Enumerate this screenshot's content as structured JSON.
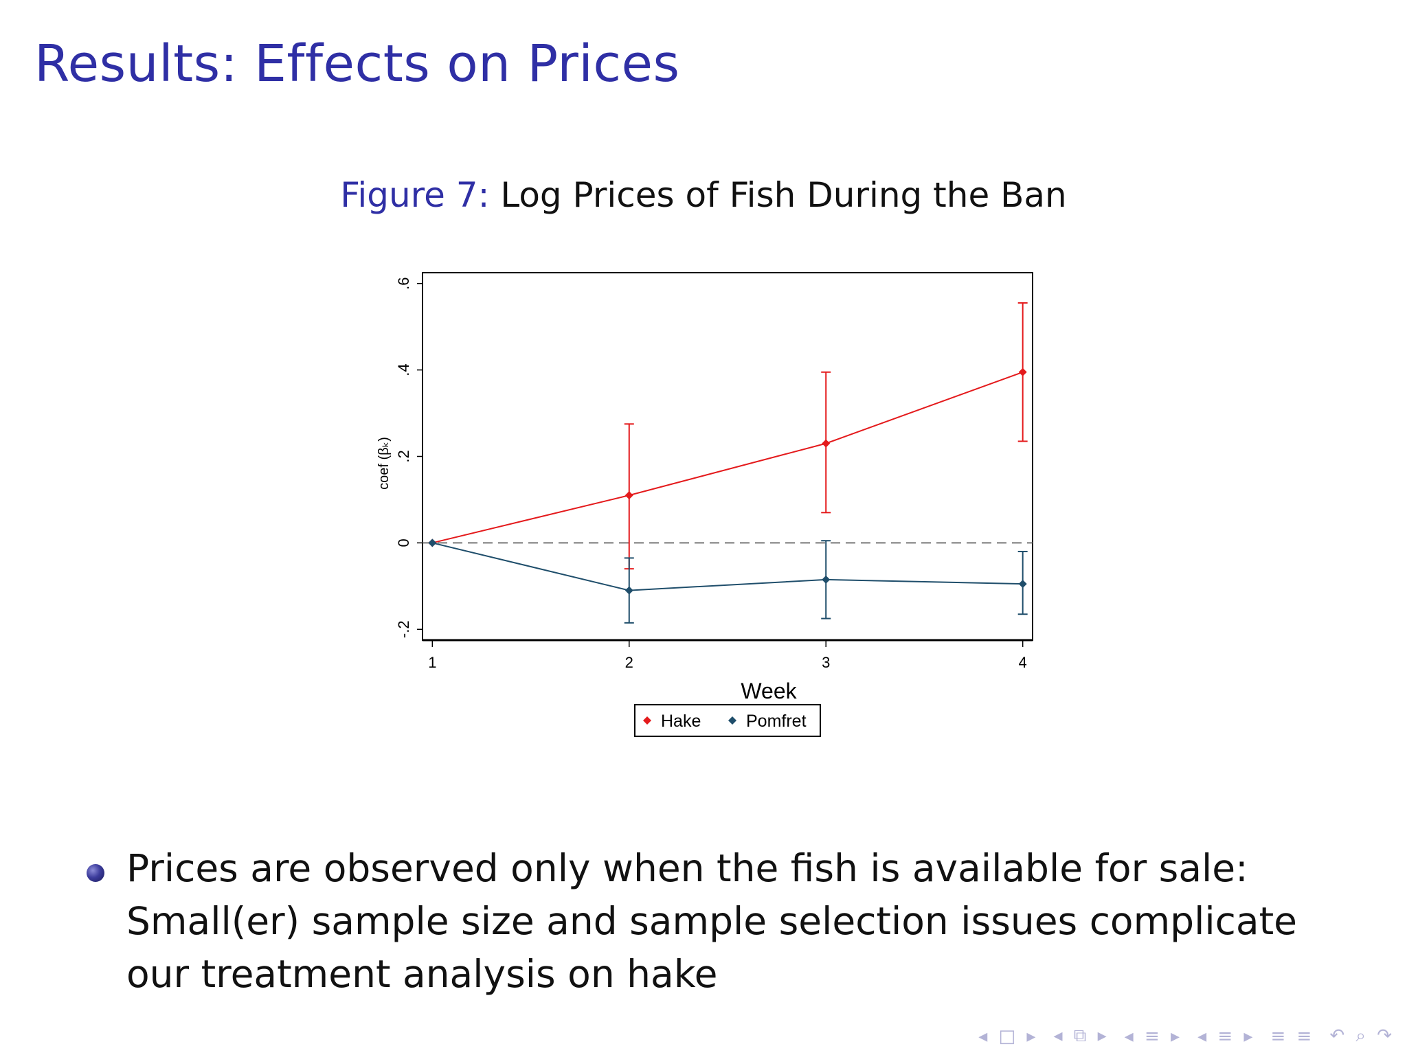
{
  "slide": {
    "title": "Results: Effects on Prices",
    "caption_label": "Figure 7:",
    "caption_text": "Log Prices of Fish During the Ban",
    "bullet_text": "Prices are observed only when the fish is available for sale: Small(er) sample size and sample selection issues complicate our treatment analysis on hake"
  },
  "navigation": {
    "icons": [
      "nav-first-icon",
      "nav-frame-icon",
      "nav-prev-section-icon",
      "nav-next-section-icon",
      "nav-outline-icon",
      "nav-search-icon"
    ],
    "glyphs": [
      "◂ □ ▸",
      "◂ ⧉ ▸",
      "◂ ≡ ▸",
      "◂ ≡ ▸",
      "≡ ≡",
      "↶ ⌕ ↷"
    ]
  },
  "chart_data": {
    "type": "line",
    "title": "",
    "xlabel": "Week",
    "ylabel": "coef (βₖ)",
    "x": [
      1,
      2,
      3,
      4
    ],
    "x_tick_labels": [
      "1",
      "2",
      "3",
      "4"
    ],
    "y_ticks": [
      -0.2,
      0,
      0.2,
      0.4,
      0.6
    ],
    "y_tick_labels": [
      "-.2",
      "0",
      ".2",
      ".4",
      ".6"
    ],
    "xlim": [
      0.95,
      4.05
    ],
    "ylim": [
      -0.225,
      0.625
    ],
    "reference_line": 0,
    "legend_position": "bottom-center",
    "series": [
      {
        "name": "Hake",
        "color": "#e41a1c",
        "values": [
          0,
          0.11,
          0.23,
          0.395
        ],
        "ci_low": [
          0,
          -0.06,
          0.07,
          0.235
        ],
        "ci_high": [
          0,
          0.275,
          0.395,
          0.555
        ]
      },
      {
        "name": "Pomfret",
        "color": "#1f4e6b",
        "values": [
          0,
          -0.11,
          -0.085,
          -0.095
        ],
        "ci_low": [
          0,
          -0.185,
          -0.175,
          -0.165
        ],
        "ci_high": [
          0,
          -0.035,
          0.005,
          -0.02
        ]
      }
    ]
  }
}
